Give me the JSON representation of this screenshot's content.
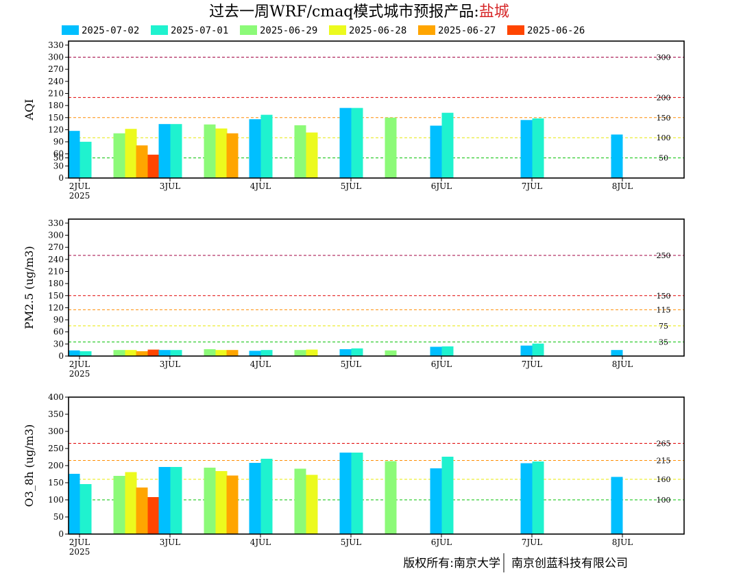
{
  "title": {
    "prefix": "过去一周WRF/cmaq模式城市预报产品:",
    "city": "盐城"
  },
  "footer": {
    "left": "版权所有:南京大学",
    "right": "南京创蓝科技有限公司"
  },
  "legend": [
    {
      "label": "2025-07-02",
      "color": "#00bfff"
    },
    {
      "label": "2025-07-01",
      "color": "#1ff2cf"
    },
    {
      "label": "2025-06-29",
      "color": "#8cfa78"
    },
    {
      "label": "2025-06-28",
      "color": "#ecfa1e"
    },
    {
      "label": "2025-06-27",
      "color": "#ffa500"
    },
    {
      "label": "2025-06-26",
      "color": "#ff4500"
    }
  ],
  "chart_data": [
    {
      "type": "bar",
      "ylabel": "AQI",
      "ylim": [
        0,
        340
      ],
      "yticks": [
        0,
        30,
        50,
        60,
        90,
        120,
        150,
        180,
        210,
        240,
        270,
        300,
        330
      ],
      "xticks": [
        "2JUL",
        "3JUL",
        "4JUL",
        "5JUL",
        "6JUL",
        "7JUL",
        "8JUL"
      ],
      "xyear": "2025",
      "thresholds": [
        {
          "value": 50,
          "label": "50",
          "color": "#00c000"
        },
        {
          "value": 100,
          "label": "100",
          "color": "#e8e800"
        },
        {
          "value": 150,
          "label": "150",
          "color": "#ff8c00"
        },
        {
          "value": 200,
          "label": "200",
          "color": "#e00000"
        },
        {
          "value": 300,
          "label": "300",
          "color": "#a00040"
        }
      ],
      "bars": [
        {
          "day": 0.0,
          "series": 0,
          "value": 117
        },
        {
          "day": 0.0,
          "series": 1,
          "value": 90
        },
        {
          "day": 0.5,
          "series": 2,
          "value": 111
        },
        {
          "day": 0.5,
          "series": 3,
          "value": 122
        },
        {
          "day": 0.5,
          "series": 4,
          "value": 81
        },
        {
          "day": 0.5,
          "series": 5,
          "value": 58
        },
        {
          "day": 1.0,
          "series": 0,
          "value": 134
        },
        {
          "day": 1.0,
          "series": 1,
          "value": 134
        },
        {
          "day": 1.5,
          "series": 2,
          "value": 133
        },
        {
          "day": 1.5,
          "series": 3,
          "value": 123
        },
        {
          "day": 1.5,
          "series": 4,
          "value": 111
        },
        {
          "day": 2.0,
          "series": 0,
          "value": 146
        },
        {
          "day": 2.0,
          "series": 1,
          "value": 157
        },
        {
          "day": 2.5,
          "series": 2,
          "value": 131
        },
        {
          "day": 2.5,
          "series": 3,
          "value": 113
        },
        {
          "day": 3.0,
          "series": 0,
          "value": 174
        },
        {
          "day": 3.0,
          "series": 1,
          "value": 174
        },
        {
          "day": 3.5,
          "series": 2,
          "value": 150
        },
        {
          "day": 4.0,
          "series": 0,
          "value": 130
        },
        {
          "day": 4.0,
          "series": 1,
          "value": 162
        },
        {
          "day": 5.0,
          "series": 0,
          "value": 144
        },
        {
          "day": 5.0,
          "series": 1,
          "value": 148
        },
        {
          "day": 6.0,
          "series": 0,
          "value": 108
        }
      ]
    },
    {
      "type": "bar",
      "ylabel": "PM2.5 (ug/m3)",
      "ylim": [
        0,
        340
      ],
      "yticks": [
        0,
        30,
        60,
        90,
        120,
        150,
        180,
        210,
        240,
        270,
        300,
        330
      ],
      "xticks": [
        "2JUL",
        "3JUL",
        "4JUL",
        "5JUL",
        "6JUL",
        "7JUL",
        "8JUL"
      ],
      "xyear": "2025",
      "thresholds": [
        {
          "value": 35,
          "label": "35",
          "color": "#00c000"
        },
        {
          "value": 75,
          "label": "75",
          "color": "#e8e800"
        },
        {
          "value": 115,
          "label": "115",
          "color": "#ff8c00"
        },
        {
          "value": 150,
          "label": "150",
          "color": "#e00000"
        },
        {
          "value": 250,
          "label": "250",
          "color": "#a00040"
        }
      ],
      "bars": [
        {
          "day": 0.0,
          "series": 0,
          "value": 14
        },
        {
          "day": 0.0,
          "series": 1,
          "value": 12
        },
        {
          "day": 0.5,
          "series": 2,
          "value": 15
        },
        {
          "day": 0.5,
          "series": 3,
          "value": 15
        },
        {
          "day": 0.5,
          "series": 4,
          "value": 12
        },
        {
          "day": 0.5,
          "series": 5,
          "value": 16
        },
        {
          "day": 1.0,
          "series": 0,
          "value": 15
        },
        {
          "day": 1.0,
          "series": 1,
          "value": 15
        },
        {
          "day": 1.5,
          "series": 2,
          "value": 17
        },
        {
          "day": 1.5,
          "series": 3,
          "value": 15
        },
        {
          "day": 1.5,
          "series": 4,
          "value": 15
        },
        {
          "day": 2.0,
          "series": 0,
          "value": 13
        },
        {
          "day": 2.0,
          "series": 1,
          "value": 15
        },
        {
          "day": 2.5,
          "series": 2,
          "value": 15
        },
        {
          "day": 2.5,
          "series": 3,
          "value": 16
        },
        {
          "day": 3.0,
          "series": 0,
          "value": 17
        },
        {
          "day": 3.0,
          "series": 1,
          "value": 19
        },
        {
          "day": 3.5,
          "series": 2,
          "value": 14
        },
        {
          "day": 4.0,
          "series": 0,
          "value": 23
        },
        {
          "day": 4.0,
          "series": 1,
          "value": 24
        },
        {
          "day": 5.0,
          "series": 0,
          "value": 26
        },
        {
          "day": 5.0,
          "series": 1,
          "value": 31
        },
        {
          "day": 6.0,
          "series": 0,
          "value": 15
        }
      ]
    },
    {
      "type": "bar",
      "ylabel": "O3_8h (ug/m3)",
      "ylim": [
        0,
        400
      ],
      "yticks": [
        0,
        50,
        100,
        150,
        200,
        250,
        300,
        350,
        400
      ],
      "xticks": [
        "2JUL",
        "3JUL",
        "4JUL",
        "5JUL",
        "6JUL",
        "7JUL",
        "8JUL"
      ],
      "xyear": "2025",
      "thresholds": [
        {
          "value": 100,
          "label": "100",
          "color": "#00c000"
        },
        {
          "value": 160,
          "label": "160",
          "color": "#e8e800"
        },
        {
          "value": 215,
          "label": "215",
          "color": "#ff8c00"
        },
        {
          "value": 265,
          "label": "265",
          "color": "#e00000"
        }
      ],
      "bars": [
        {
          "day": 0.0,
          "series": 0,
          "value": 176
        },
        {
          "day": 0.0,
          "series": 1,
          "value": 146
        },
        {
          "day": 0.5,
          "series": 2,
          "value": 170
        },
        {
          "day": 0.5,
          "series": 3,
          "value": 181
        },
        {
          "day": 0.5,
          "series": 4,
          "value": 136
        },
        {
          "day": 0.5,
          "series": 5,
          "value": 108
        },
        {
          "day": 1.0,
          "series": 0,
          "value": 196
        },
        {
          "day": 1.0,
          "series": 1,
          "value": 196
        },
        {
          "day": 1.5,
          "series": 2,
          "value": 194
        },
        {
          "day": 1.5,
          "series": 3,
          "value": 184
        },
        {
          "day": 1.5,
          "series": 4,
          "value": 171
        },
        {
          "day": 2.0,
          "series": 0,
          "value": 208
        },
        {
          "day": 2.0,
          "series": 1,
          "value": 220
        },
        {
          "day": 2.5,
          "series": 2,
          "value": 191
        },
        {
          "day": 2.5,
          "series": 3,
          "value": 173
        },
        {
          "day": 3.0,
          "series": 0,
          "value": 238
        },
        {
          "day": 3.0,
          "series": 1,
          "value": 238
        },
        {
          "day": 3.5,
          "series": 2,
          "value": 213
        },
        {
          "day": 4.0,
          "series": 0,
          "value": 192
        },
        {
          "day": 4.0,
          "series": 1,
          "value": 226
        },
        {
          "day": 5.0,
          "series": 0,
          "value": 207
        },
        {
          "day": 5.0,
          "series": 1,
          "value": 212
        },
        {
          "day": 6.0,
          "series": 0,
          "value": 167
        }
      ]
    }
  ]
}
